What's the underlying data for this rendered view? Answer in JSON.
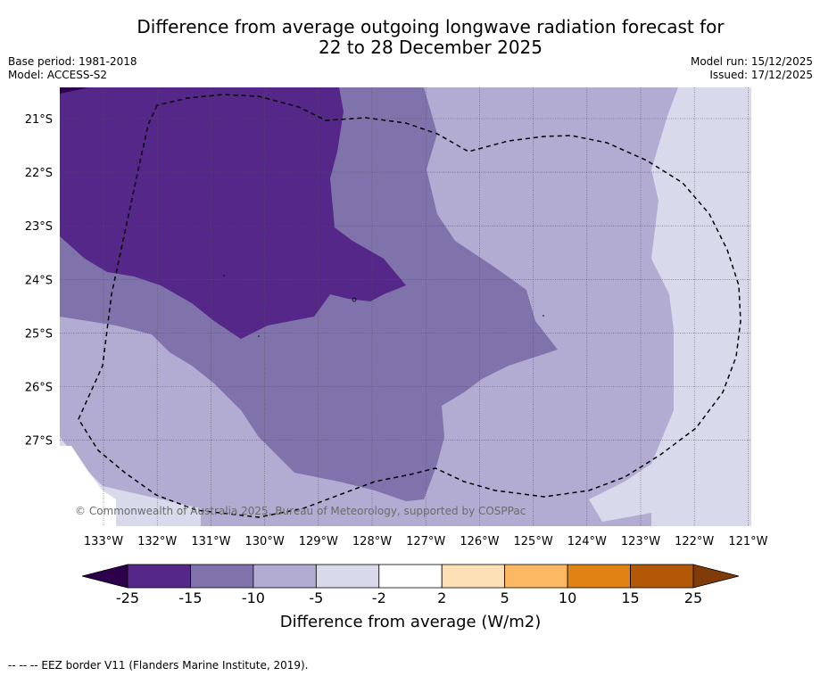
{
  "title": {
    "line1": "Difference from average outgoing longwave radiation forecast for",
    "line2": "22 to 28 December 2025"
  },
  "meta": {
    "base_period": "Base period: 1981-2018",
    "model": "Model: ACCESS-S2",
    "model_run": "Model run: 15/12/2025",
    "issued": "Issued: 17/12/2025"
  },
  "map": {
    "latitude_labels": [
      "21°S",
      "22°S",
      "23°S",
      "24°S",
      "25°S",
      "26°S",
      "27°S"
    ],
    "longitude_labels": [
      "133°W",
      "132°W",
      "131°W",
      "130°W",
      "129°W",
      "128°W",
      "127°W",
      "126°W",
      "125°W",
      "124°W",
      "123°W",
      "122°W",
      "121°W"
    ],
    "copyright": "© Commonwealth of Australia 2025, Bureau of Meteorology, supported by COSPPac"
  },
  "colorbar": {
    "ticks": [
      "-25",
      "-15",
      "-10",
      "-5",
      "-2",
      "2",
      "5",
      "10",
      "15",
      "25"
    ],
    "colors": [
      "#542788",
      "#8073ac",
      "#b2abd2",
      "#d8daeb",
      "#ffffff",
      "#fee0b6",
      "#fdb863",
      "#e08214",
      "#b35806"
    ],
    "under_color": "#2d004b",
    "over_color": "#7f3b08",
    "label": "Difference from average (W/m2)"
  },
  "footnote": "--  --  -- EEZ border V11 (Flanders Marine Institute, 2019)."
}
